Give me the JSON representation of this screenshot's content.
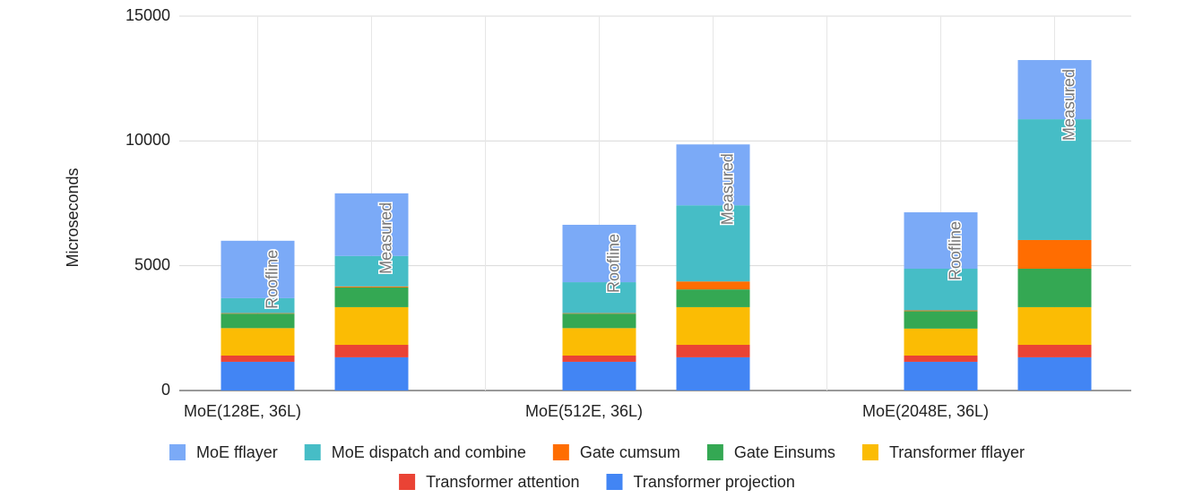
{
  "chart_data": {
    "type": "stacked_bar",
    "y_axis_label": "Microseconds",
    "categories": [
      "MoE(128E, 36L)",
      null,
      null,
      "MoE(512E, 36L)",
      null,
      null,
      "MoE(2048E, 36L)",
      null
    ],
    "bar_labels": [
      "Roofline",
      "Measured",
      null,
      "Roofline",
      "Measured",
      null,
      "Roofline",
      "Measured"
    ],
    "series": [
      {
        "name": "Transformer projection",
        "color": "#4285f4",
        "values": [
          1150,
          1330,
          null,
          1150,
          1330,
          null,
          1150,
          1330
        ]
      },
      {
        "name": "Transformer attention",
        "color": "#ea4335",
        "values": [
          250,
          500,
          null,
          250,
          500,
          null,
          250,
          500
        ]
      },
      {
        "name": "Transformer fflayer",
        "color": "#fbbc04",
        "values": [
          1100,
          1510,
          null,
          1100,
          1510,
          null,
          1080,
          1510
        ]
      },
      {
        "name": "Gate Einsums",
        "color": "#34a853",
        "values": [
          580,
          790,
          null,
          580,
          710,
          null,
          700,
          1540
        ]
      },
      {
        "name": "Gate cumsum",
        "color": "#ff6d01",
        "values": [
          20,
          40,
          null,
          20,
          320,
          null,
          30,
          1150
        ]
      },
      {
        "name": "MoE dispatch and combine",
        "color": "#46bdc6",
        "values": [
          600,
          1220,
          null,
          1240,
          3050,
          null,
          1670,
          4840
        ]
      },
      {
        "name": "MoE fflayer",
        "color": "#7baaf7",
        "values": [
          2300,
          2510,
          null,
          2300,
          2440,
          null,
          2260,
          2370
        ]
      }
    ],
    "legend_order": [
      6,
      5,
      4,
      3,
      2,
      1,
      0
    ],
    "ylim": [
      0,
      15000
    ],
    "yticks": [
      0,
      5000,
      10000,
      15000
    ],
    "grid": true,
    "legend": "bottom"
  }
}
